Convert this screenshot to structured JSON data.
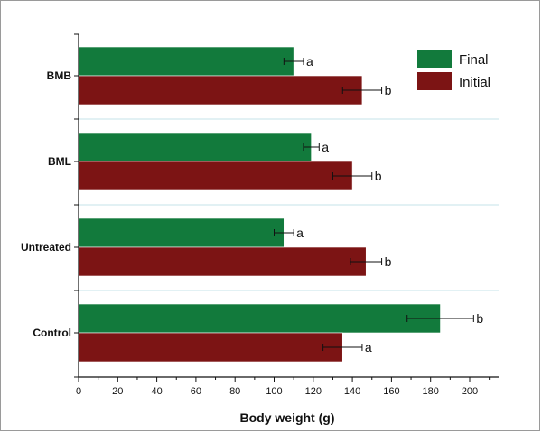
{
  "chart_data": {
    "type": "bar",
    "orientation": "horizontal",
    "categories": [
      "BMB",
      "BML",
      "Untreated",
      "Control"
    ],
    "series": [
      {
        "name": "Final",
        "color": "#127a3c",
        "values": [
          110,
          119,
          105,
          185
        ],
        "errors": [
          5,
          4,
          5,
          17
        ],
        "labels": [
          "a",
          "a",
          "a",
          "b"
        ]
      },
      {
        "name": "Initial",
        "color": "#7c1414",
        "values": [
          145,
          140,
          147,
          135
        ],
        "errors": [
          10,
          10,
          8,
          10
        ],
        "labels": [
          "b",
          "b",
          "b",
          "a"
        ]
      }
    ],
    "xlabel": "Body weight (g)",
    "ylabel": "",
    "xlim": [
      0,
      210
    ],
    "xticks": [
      "0",
      "20",
      "40",
      "60",
      "80",
      "100",
      "120",
      "140",
      "160",
      "180",
      "200"
    ],
    "grid": "horizontal separators only",
    "legend_position": "top-right",
    "error_color": "#111111",
    "separator_color": "#c6e3ea"
  }
}
